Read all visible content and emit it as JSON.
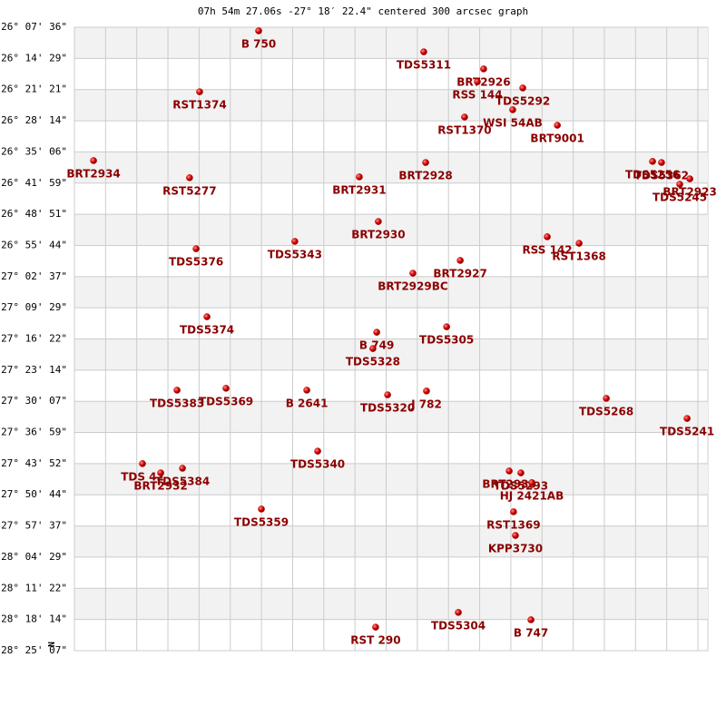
{
  "chart_data": {
    "type": "scatter",
    "title": "07h 54m 27.06s -27° 18′ 22.4\" centered 300 arcsec graph",
    "north_label": "N",
    "color": "#cc0000",
    "label_color": "#8b0000",
    "grid": true,
    "xlim": [
      -1.1643,
      1.1643
    ],
    "xticks": [
      -1.1643,
      -1.0497,
      -0.9351,
      -0.8205,
      -0.7059,
      -0.5913,
      -0.4767,
      -0.3621,
      -0.2475,
      -0.1329,
      -0.0183,
      0.0963,
      0.2109,
      0.3255,
      0.4401,
      0.5547,
      0.6693,
      0.7839,
      0.8985,
      1.0131,
      1.1277
    ],
    "ylim": [
      -28.418611,
      -26.126667
    ],
    "yticks": [
      {
        "value": -26.126667,
        "label": "-26° 07' 36\""
      },
      {
        "value": -26.241389,
        "label": "-26° 14' 29\""
      },
      {
        "value": -26.355833,
        "label": "-26° 21' 21\""
      },
      {
        "value": -26.470556,
        "label": "-26° 28' 14\""
      },
      {
        "value": -26.585,
        "label": "-26° 35' 06\""
      },
      {
        "value": -26.699722,
        "label": "-26° 41' 59\""
      },
      {
        "value": -26.814167,
        "label": "-26° 48' 51\""
      },
      {
        "value": -26.928889,
        "label": "-26° 55' 44\""
      },
      {
        "value": -27.043611,
        "label": "-27° 02' 37\""
      },
      {
        "value": -27.158056,
        "label": "-27° 09' 29\""
      },
      {
        "value": -27.272778,
        "label": "-27° 16' 22\""
      },
      {
        "value": -27.387222,
        "label": "-27° 23' 14\""
      },
      {
        "value": -27.501944,
        "label": "-27° 30' 07\""
      },
      {
        "value": -27.616389,
        "label": "-27° 36' 59\""
      },
      {
        "value": -27.731111,
        "label": "-27° 43' 52\""
      },
      {
        "value": -27.845556,
        "label": "-27° 50' 44\""
      },
      {
        "value": -27.960278,
        "label": "-27° 57' 37\""
      },
      {
        "value": -28.074722,
        "label": "-28° 04' 29\""
      },
      {
        "value": -28.189444,
        "label": "-28° 11' 22\""
      },
      {
        "value": -28.303889,
        "label": "-28° 18' 14\""
      },
      {
        "value": -28.418611,
        "label": "-28° 25' 07\""
      }
    ],
    "labels": [
      "B  750",
      "TDS5311",
      "BRT2926",
      "RSS 144",
      "TDS5292",
      "RST1374",
      "WSI  54AB",
      "RST1370",
      "BRT9001",
      "BRT2934",
      "BRT2928",
      "TDS5256",
      "TDS5362",
      "BRT2923",
      "TDS5245",
      "RST5277",
      "BRT2931",
      "BRT2930",
      "TDS5343",
      "TDS5376",
      "RSS 142",
      "RST1368",
      "BRT2927",
      "BRT2929BC",
      "TDS5374",
      "TDS5305",
      "B  749",
      "TDS5328",
      "TDS5383",
      "TDS5369",
      "B  2641",
      "TDS5320",
      "J  782",
      "TDS5268",
      "TDS5241",
      "TDS5340",
      "TDS 42",
      "TDS5384",
      "BRT2932",
      "BRT2933",
      "TDS5293",
      "HJ 2421AB",
      "TDS5359",
      "RST1369",
      "KPP3730",
      "TDS5304",
      "B  747",
      "RST 290"
    ],
    "x": [
      -0.487,
      0.12,
      0.34,
      0.317,
      0.484,
      -0.704,
      0.447,
      0.27,
      0.611,
      -1.094,
      0.127,
      0.961,
      0.994,
      1.098,
      1.061,
      -0.741,
      -0.117,
      -0.047,
      -0.354,
      -0.717,
      0.574,
      0.691,
      0.254,
      0.08,
      -0.677,
      0.204,
      -0.053,
      -0.067,
      -0.787,
      -0.607,
      -0.31,
      -0.013,
      0.13,
      0.791,
      1.088,
      -0.27,
      -0.914,
      -0.767,
      -0.847,
      0.434,
      0.477,
      0.517,
      -0.477,
      0.45,
      0.457,
      0.247,
      0.514,
      -0.057
    ],
    "values": [
      -26.14,
      -26.217,
      -26.28,
      -26.327,
      -26.35,
      -26.364,
      -26.43,
      -26.457,
      -26.487,
      -26.617,
      -26.624,
      -26.62,
      -26.624,
      -26.684,
      -26.704,
      -26.68,
      -26.677,
      -26.841,
      -26.914,
      -26.941,
      -26.897,
      -26.921,
      -26.984,
      -27.031,
      -27.191,
      -27.228,
      -27.248,
      -27.308,
      -27.461,
      -27.454,
      -27.461,
      -27.478,
      -27.464,
      -27.491,
      -27.565,
      -27.685,
      -27.731,
      -27.748,
      -27.765,
      -27.758,
      -27.765,
      -27.801,
      -27.898,
      -27.908,
      -27.995,
      -28.278,
      -28.305,
      -28.332
    ]
  }
}
